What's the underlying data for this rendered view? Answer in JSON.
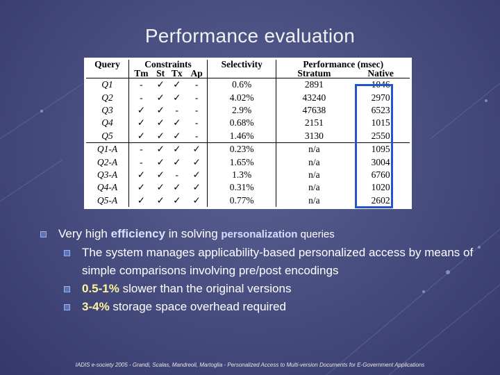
{
  "title": "Performance evaluation",
  "table": {
    "header_top": {
      "query": "Query",
      "constraints": "Constraints",
      "selectivity": "Selectivity",
      "performance": "Performance (msec)"
    },
    "header_sub": [
      "Tm",
      "St",
      "Tx",
      "Ap",
      "Stratum",
      "Native"
    ],
    "rows": [
      {
        "query": "Q1",
        "tm": "-",
        "st": "✓",
        "tx": "✓",
        "ap": "-",
        "selectivity": "0.6%",
        "stratum": "2891",
        "native": "1046"
      },
      {
        "query": "Q2",
        "tm": "-",
        "st": "✓",
        "tx": "✓",
        "ap": "-",
        "selectivity": "4.02%",
        "stratum": "43240",
        "native": "2970"
      },
      {
        "query": "Q3",
        "tm": "✓",
        "st": "✓",
        "tx": "-",
        "ap": "-",
        "selectivity": "2.9%",
        "stratum": "47638",
        "native": "6523"
      },
      {
        "query": "Q4",
        "tm": "✓",
        "st": "✓",
        "tx": "✓",
        "ap": "-",
        "selectivity": "0.68%",
        "stratum": "2151",
        "native": "1015"
      },
      {
        "query": "Q5",
        "tm": "✓",
        "st": "✓",
        "tx": "✓",
        "ap": "-",
        "selectivity": "1.46%",
        "stratum": "3130",
        "native": "2550"
      },
      {
        "query": "Q1-A",
        "tm": "-",
        "st": "✓",
        "tx": "✓",
        "ap": "✓",
        "selectivity": "0.23%",
        "stratum": "n/a",
        "native": "1095"
      },
      {
        "query": "Q2-A",
        "tm": "-",
        "st": "✓",
        "tx": "✓",
        "ap": "✓",
        "selectivity": "1.65%",
        "stratum": "n/a",
        "native": "3004"
      },
      {
        "query": "Q3-A",
        "tm": "✓",
        "st": "✓",
        "tx": "-",
        "ap": "✓",
        "selectivity": "1.3%",
        "stratum": "n/a",
        "native": "6760"
      },
      {
        "query": "Q4-A",
        "tm": "✓",
        "st": "✓",
        "tx": "✓",
        "ap": "✓",
        "selectivity": "0.31%",
        "stratum": "n/a",
        "native": "1020"
      },
      {
        "query": "Q5-A",
        "tm": "✓",
        "st": "✓",
        "tx": "✓",
        "ap": "✓",
        "selectivity": "0.77%",
        "stratum": "n/a",
        "native": "2602"
      }
    ],
    "highlight_color": "#2255cc"
  },
  "bullets": {
    "b1_pre": "Very high ",
    "b1_hl1": "efficiency",
    "b1_mid": " in solving ",
    "b1_hl2": "personalization",
    "b1_post": " queries",
    "b2": "The system manages applicability-based personalized access by means of simple comparisons involving pre/post encodings",
    "b3_hl": "0.5-1%",
    "b3_post": " slower than the original versions",
    "b4_hl": "3-4%",
    "b4_post": " storage space overhead required"
  },
  "footer": "IADIS e-society 2005 - Grandi, Scalas, Mandreoli, Martoglia - Personalized Access to Multi-version Documents for E-Government Applications"
}
